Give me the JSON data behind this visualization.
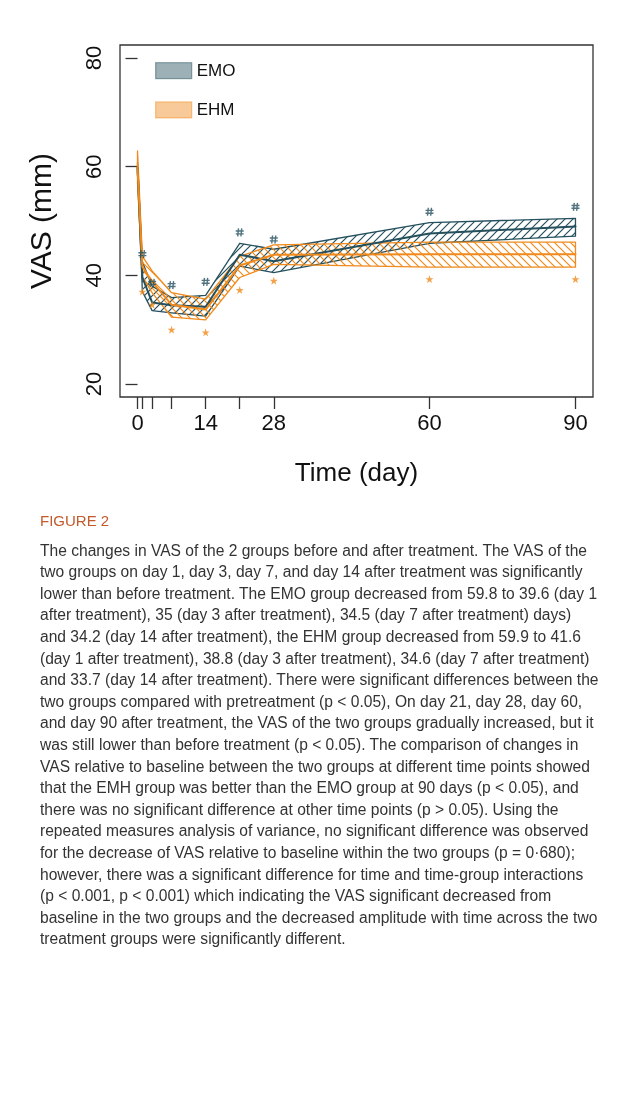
{
  "chart_data": {
    "type": "line",
    "title": "FIGURE 2",
    "xlabel": "Time (day)",
    "ylabel": "VAS (mm)",
    "xlim": [
      -3.6,
      93.6
    ],
    "ylim": [
      17.6,
      82.4
    ],
    "xticks": [
      0,
      {
        "value": 1,
        "label": null
      },
      {
        "value": 3,
        "label": null
      },
      {
        "value": 7,
        "label": null
      },
      14,
      {
        "value": 21,
        "label": null
      },
      28,
      60,
      90
    ],
    "yticks": [
      20,
      40,
      60,
      80
    ],
    "legend": "top left",
    "marker": "none",
    "series": [
      {
        "name": "EMO",
        "color": "#24505e",
        "x": [
          0,
          1,
          3,
          7,
          14,
          21,
          28,
          60,
          90
        ],
        "values": [
          59.8,
          39.6,
          35,
          34.5,
          34.2,
          43.8,
          42.6,
          47.7,
          49.0
        ],
        "lower": [
          58.8,
          37,
          33.5,
          33.1,
          32.5,
          41.7,
          40.5,
          45.9,
          47.2
        ],
        "upper": [
          60.8,
          42.5,
          38,
          35.9,
          36.3,
          45.9,
          44.8,
          49.7,
          50.5
        ]
      },
      {
        "name": "EHM",
        "color": "#f08a1c",
        "x": [
          0,
          1,
          3,
          7,
          14,
          21,
          28,
          60,
          90
        ],
        "values": [
          59.9,
          41.6,
          38.8,
          34.6,
          33.7,
          41.8,
          43.8,
          43.9,
          43.9
        ],
        "lower": [
          56.9,
          39.7,
          36.8,
          32.3,
          31.8,
          39.6,
          42.0,
          41.5,
          41.5
        ],
        "upper": [
          62.9,
          43.5,
          40.8,
          36.8,
          35.6,
          43.5,
          45.6,
          46.1,
          46.1
        ]
      },
      {
        "type": "scatter",
        "marker": "cross",
        "color": "#24505e",
        "x": [
          1,
          3,
          7,
          14,
          21,
          28,
          60,
          90
        ],
        "values": [
          43.9,
          38.6,
          38.2,
          38.8,
          47.9,
          46.6,
          51.7,
          52.6
        ]
      },
      {
        "type": "scatter",
        "marker": "star",
        "color": "#f08a1c",
        "x": [
          1,
          3,
          7,
          14,
          21,
          28,
          60,
          90
        ],
        "values": [
          37.0,
          34.6,
          30.0,
          29.5,
          37.3,
          39.0,
          39.3,
          39.3
        ]
      }
    ],
    "annotations": [
      "The changes in VAS of the 2 groups before and after treatment. The VAS of the two groups on day 1, day 3, day 7, and day 14 after treatment was significantly lower than before treatment. The EMO group decreased from 59.8 to 39.6 (day 1 after treatment), 35 (day 3 after treatment), 34.5 (day 7 after treatment) days) and 34.2 (day 14 after treatment), the EHM group decreased from 59.9 to 41.6 (day 1 after treatment), 38.8 (day 3 after treatment), 34.6 (day 7 after treatment) and 33.7 (day 14 after treatment). There were significant differences between the two groups compared with pretreatment (p < 0.05), On day 21, day 28, day 60, and day 90 after treatment, the VAS of the two groups gradually increased, but it was still lower than before treatment (p < 0.05). The comparison of changes in VAS relative to baseline between the two groups at different time points showed that the EMH group was better than the EMO group at 90 days (p < 0.05), and there was no significant difference at other time points (p > 0.05). Using the repeated measures analysis of variance, no significant difference was observed for the decrease of VAS relative to baseline within the two groups (p = 0·680); however, there was a significant difference for time and time-group interactions (p < 0.001, p < 0.001) which indicating the VAS significant decreased from baseline in the two groups and the decreased amplitude with time across the two treatment groups were significantly different."
    ]
  }
}
